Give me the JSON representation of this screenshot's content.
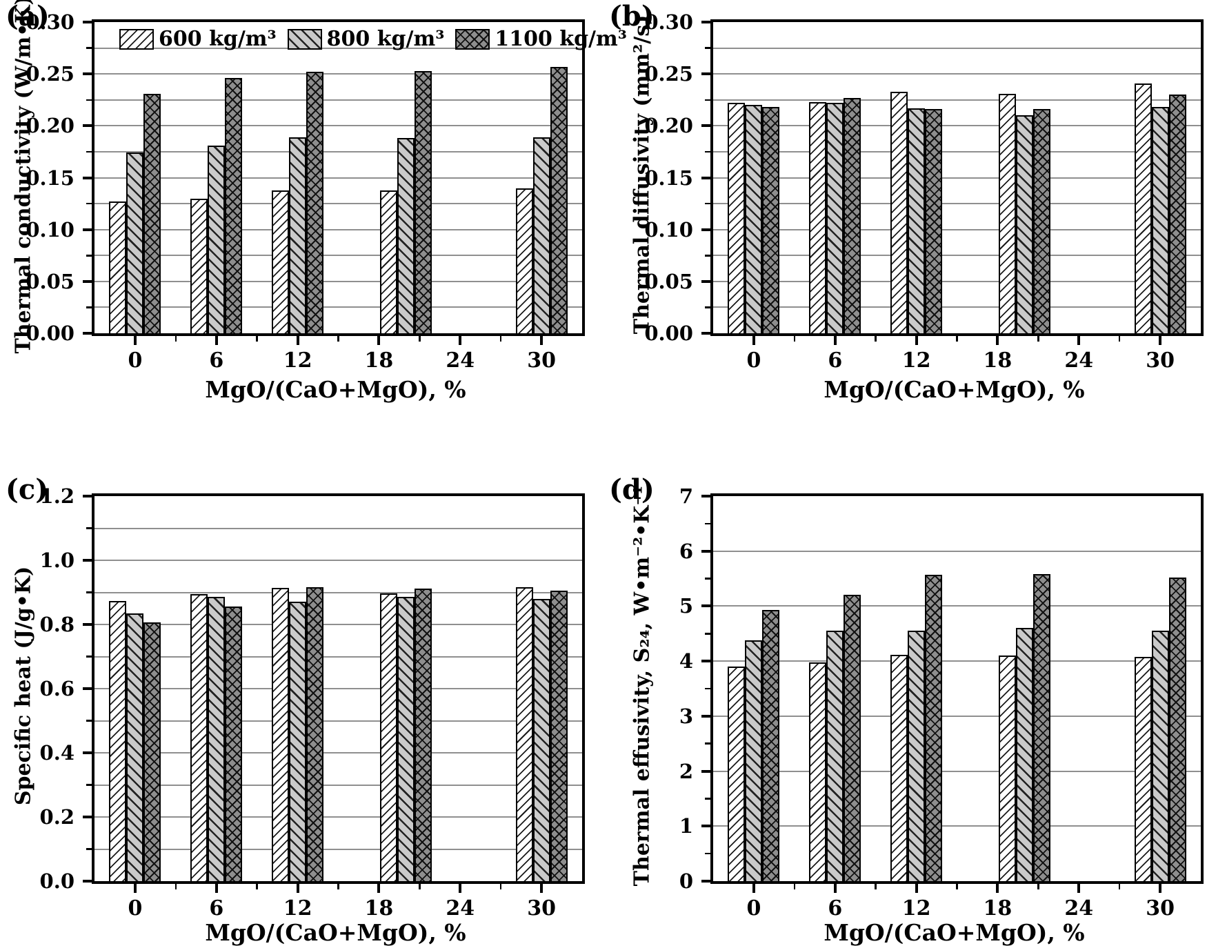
{
  "figure": {
    "xlabel": "MgO/(CaO+MgO), %",
    "legend": [
      {
        "label": "600 kg/m³",
        "pattern": "diagonal-forward-hatch",
        "fill": "#ffffff"
      },
      {
        "label": "800 kg/m³",
        "pattern": "diagonal-backward-hatch",
        "fill": "#cacaca"
      },
      {
        "label": "1100 kg/m³",
        "pattern": "cross-hatch",
        "fill": "#8e8e8e"
      }
    ],
    "colors": {
      "axis": "#000000",
      "grid": "#8f8f8f",
      "bar_outline": "#000000"
    }
  },
  "chart_data": [
    {
      "type": "bar",
      "panel_label": "(a)",
      "ylabel": "Thermal conductivity (W/m•K)",
      "xlabel": "MgO/(CaO+MgO), %",
      "ylim": [
        0,
        0.3
      ],
      "y_major_step": 0.05,
      "y_minor_step": 0.025,
      "grid_step": 0.025,
      "y_tick_labels": [
        "0.00",
        "0.05",
        "0.10",
        "0.15",
        "0.20",
        "0.25",
        "0.30"
      ],
      "xlim": [
        -3,
        33
      ],
      "x_tick_values": [
        0,
        6,
        12,
        18,
        24,
        30
      ],
      "x_tick_labels": [
        "0",
        "6",
        "12",
        "18",
        "24",
        "30"
      ],
      "x_minor_values": [
        3,
        9,
        15,
        21,
        27
      ],
      "categories": [
        0,
        6,
        12,
        18,
        30
      ],
      "group_centers": [
        0,
        6,
        12,
        20,
        30
      ],
      "legend_visible": true,
      "series": [
        {
          "name": "600 kg/m³",
          "values": [
            0.127,
            0.13,
            0.138,
            0.138,
            0.14
          ]
        },
        {
          "name": "800 kg/m³",
          "values": [
            0.174,
            0.181,
            0.189,
            0.188,
            0.189
          ]
        },
        {
          "name": "1100 kg/m³",
          "values": [
            0.231,
            0.246,
            0.252,
            0.253,
            0.257
          ]
        }
      ]
    },
    {
      "type": "bar",
      "panel_label": "(b)",
      "ylabel": "Thermal diffusivity (mm²/s)",
      "xlabel": "MgO/(CaO+MgO), %",
      "ylim": [
        0,
        0.3
      ],
      "y_major_step": 0.05,
      "y_minor_step": 0.025,
      "grid_step": 0.025,
      "y_tick_labels": [
        "0.00",
        "0.05",
        "0.10",
        "0.15",
        "0.20",
        "0.25",
        "0.30"
      ],
      "xlim": [
        -3,
        33
      ],
      "x_tick_values": [
        0,
        6,
        12,
        18,
        24,
        30
      ],
      "x_tick_labels": [
        "0",
        "6",
        "12",
        "18",
        "24",
        "30"
      ],
      "x_minor_values": [
        3,
        9,
        15,
        21,
        27
      ],
      "categories": [
        0,
        6,
        12,
        18,
        30
      ],
      "group_centers": [
        0,
        6,
        12,
        20,
        30
      ],
      "legend_visible": false,
      "series": [
        {
          "name": "600 kg/m³",
          "values": [
            0.222,
            0.223,
            0.233,
            0.231,
            0.241
          ]
        },
        {
          "name": "800 kg/m³",
          "values": [
            0.22,
            0.222,
            0.217,
            0.21,
            0.218
          ]
        },
        {
          "name": "1100 kg/m³",
          "values": [
            0.218,
            0.227,
            0.216,
            0.216,
            0.23
          ]
        }
      ]
    },
    {
      "type": "bar",
      "panel_label": "(c)",
      "ylabel": "Specific heat (J/g•K)",
      "xlabel": "MgO/(CaO+MgO), %",
      "ylim": [
        0,
        1.2
      ],
      "y_major_step": 0.2,
      "y_minor_step": 0.1,
      "grid_step": 0.1,
      "y_tick_labels": [
        "0.0",
        "0.2",
        "0.4",
        "0.6",
        "0.8",
        "1.0",
        "1.2"
      ],
      "xlim": [
        -3,
        33
      ],
      "x_tick_values": [
        0,
        6,
        12,
        18,
        24,
        30
      ],
      "x_tick_labels": [
        "0",
        "6",
        "12",
        "18",
        "24",
        "30"
      ],
      "x_minor_values": [
        3,
        9,
        15,
        21,
        27
      ],
      "categories": [
        0,
        6,
        12,
        18,
        30
      ],
      "group_centers": [
        0,
        6,
        12,
        20,
        30
      ],
      "legend_visible": false,
      "series": [
        {
          "name": "600 kg/m³",
          "values": [
            0.874,
            0.894,
            0.913,
            0.896,
            0.916
          ]
        },
        {
          "name": "800 kg/m³",
          "values": [
            0.835,
            0.885,
            0.871,
            0.887,
            0.88
          ]
        },
        {
          "name": "1100 kg/m³",
          "values": [
            0.806,
            0.855,
            0.916,
            0.911,
            0.905
          ]
        }
      ]
    },
    {
      "type": "bar",
      "panel_label": "(d)",
      "ylabel": "Thermal effusivity, S₂₄, W•m⁻²•K⁻¹",
      "xlabel": "MgO/(CaO+MgO), %",
      "ylim": [
        0,
        7
      ],
      "y_major_step": 1,
      "y_minor_step": 0.5,
      "grid_step": 1,
      "y_tick_labels": [
        "0",
        "1",
        "2",
        "3",
        "4",
        "5",
        "6",
        "7"
      ],
      "xlim": [
        -3,
        33
      ],
      "x_tick_values": [
        0,
        6,
        12,
        18,
        24,
        30
      ],
      "x_tick_labels": [
        "0",
        "6",
        "12",
        "18",
        "24",
        "30"
      ],
      "x_minor_values": [
        3,
        9,
        15,
        21,
        27
      ],
      "categories": [
        0,
        6,
        12,
        18,
        30
      ],
      "group_centers": [
        0,
        6,
        12,
        20,
        30
      ],
      "legend_visible": false,
      "series": [
        {
          "name": "600 kg/m³",
          "values": [
            3.9,
            3.98,
            4.11,
            4.1,
            4.08
          ]
        },
        {
          "name": "800 kg/m³",
          "values": [
            4.38,
            4.55,
            4.55,
            4.61,
            4.56
          ]
        },
        {
          "name": "1100 kg/m³",
          "values": [
            4.93,
            5.21,
            5.57,
            5.58,
            5.52
          ]
        }
      ]
    }
  ]
}
